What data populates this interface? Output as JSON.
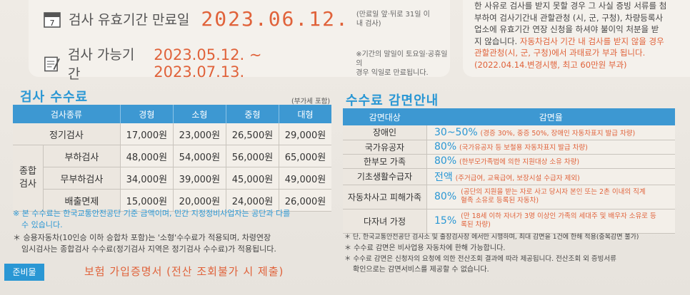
{
  "validity": {
    "label": "검사 유효기간 만료일",
    "date": "2023.06.12.",
    "note": "(만료일 앞·뒤로 31일 이내 검사)"
  },
  "available": {
    "label": "검사 가능기간",
    "range": "2023.05.12. ~ 2023.07.13.",
    "note_l1": "※기간의 말일이 토요일·공휴일의",
    "note_l2": "경우 익일로 만료됩니다."
  },
  "right_box": {
    "l1": "한 사유로 검사를 받지 못할 경우 그 사실 증빙 서류를 첨",
    "l2": "부하여 검사기간내 관할관청 (시, 군, 구청), 차량등록사",
    "l3": "업소에 유효기간 연장 신청을 하셔야 불이익 처분을 받",
    "l4a": "지 않습니다. ",
    "l4b": "자동차검사 기간 내 검사를 받지 않을 경우",
    "l5": "관할관청(시, 군, 구청)에서 과태료가 부과 됩니다.",
    "l6": "(2022.04.14.변경시행, 최고 60만원 부과)"
  },
  "fee": {
    "title": "검사 수수료",
    "vat": "(부가세 포함)",
    "headers": [
      "검사종류",
      "경형",
      "소형",
      "중형",
      "대형"
    ],
    "rows": [
      {
        "group": "",
        "type": "정기검사",
        "values": [
          "17,000원",
          "23,000원",
          "26,500원",
          "29,000원"
        ]
      },
      {
        "group": "종합 검사",
        "type": "부하검사",
        "values": [
          "48,000원",
          "54,000원",
          "56,000원",
          "65,000원"
        ]
      },
      {
        "group": "",
        "type": "무부하검사",
        "values": [
          "34,000원",
          "39,000원",
          "45,000원",
          "49,000원"
        ]
      },
      {
        "group": "",
        "type": "배출면제",
        "values": [
          "15,000원",
          "20,000원",
          "24,000원",
          "26,000원"
        ]
      }
    ],
    "group_l1": "종합",
    "group_l2": "검사"
  },
  "fee_notes": {
    "n1_l1": "※ 본 수수료는 한국교통안전공단 기준 금액이며, 민간 지정정비사업자는 공단과 다를",
    "n1_l2": "수 있습니다.",
    "n2_l1": "＊ 승용자동차(10인승 이하 승합차 포함)는 '소형'수수료가 적용되며, 차령연장",
    "n2_l2": "임시검사는 종합검사 수수료(정기검사 지역은 정기검사 수수료)가 적용됩니다."
  },
  "prep": {
    "tag": "준비물",
    "text": "보험 가입증명서 (전산 조회불가 시 제출)"
  },
  "reduction": {
    "title": "수수료 감면안내",
    "headers": [
      "감면대상",
      "감면율"
    ],
    "rows": [
      {
        "target": "장애인",
        "pct": "30~50%",
        "desc": "(경증 30%, 중증 50%, 장애인 자동차표지 발급 차량)"
      },
      {
        "target": "국가유공자",
        "pct": "80%",
        "desc": "(국가유공자 등 보철용 자동차표지 발급 차량)"
      },
      {
        "target": "한부모 가족",
        "pct": "80%",
        "desc": "(한부모가족법에 의한 지원대상 소유 차량)"
      },
      {
        "target": "기초생활수급자",
        "pct": "전액",
        "desc": "(주거급여, 교육급여, 보장시설 수급자 제외)"
      },
      {
        "target": "자동차사고 피해가족",
        "pct": "80%",
        "desc": "(공단의 지원을 받는 자로 사고 당시자 본인 또는 2촌 이내의 직계 혈족 소유로 등록된 자동차)"
      },
      {
        "target": "다자녀 가정",
        "pct": "15%",
        "desc": "(만 18세 이하 자녀가 3명 이상인 가족의 세대주 및 배우자 소유로 등록된 차량)"
      }
    ]
  },
  "reduction_notes": {
    "n1": "＊ 단, 한국교통안전공단 검사소 및 출장검사장 에서만 시행하며, 최대 감면을 1건에 한해 적용(중복감면 불가)",
    "n2": "＊ 수수료 감면은 비사업용 자동차에 한해 가능합니다.",
    "n3_l1": "＊ 수수료 감면은 신청자의 요청에 의한 전산조회 결과에 따라 제공됩니다. 전산조회 외 증빙서류",
    "n3_l2": "확인으로는 감면서비스를 제공할 수 없습니다."
  }
}
